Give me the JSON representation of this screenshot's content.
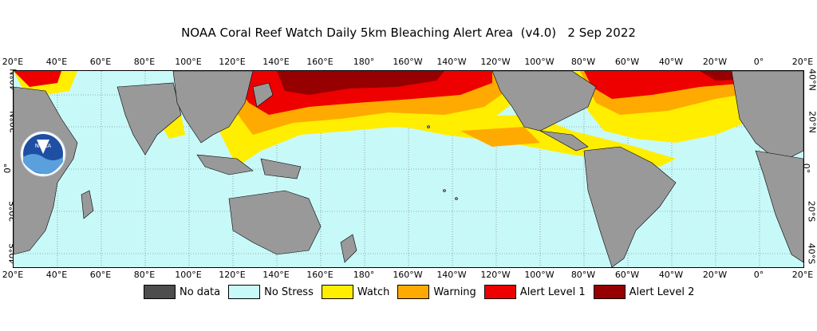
{
  "title": "NOAA Coral Reef Watch Daily 5km Bleaching Alert Area  (v4.0)   2 Sep 2022",
  "logo_text": "NOAA",
  "x_ticks": [
    "20°E",
    "40°E",
    "60°E",
    "80°E",
    "100°E",
    "120°E",
    "140°E",
    "160°E",
    "180°",
    "160°W",
    "140°W",
    "120°W",
    "100°W",
    "80°W",
    "60°W",
    "40°W",
    "20°W",
    "0°",
    "20°E"
  ],
  "y_ticks_left": [
    "40°N",
    "20°N",
    "0°",
    "20°S",
    "40°S"
  ],
  "y_ticks_right": [
    "40°N",
    "20°N",
    "0°",
    "20°S",
    "40°S"
  ],
  "legend": [
    {
      "label": "No data",
      "color": "#4d4d4d"
    },
    {
      "label": "No Stress",
      "color": "#c8f9f9"
    },
    {
      "label": "Watch",
      "color": "#ffee00"
    },
    {
      "label": "Warning",
      "color": "#ffaa00"
    },
    {
      "label": "Alert Level 1",
      "color": "#ee0000"
    },
    {
      "label": "Alert Level 2",
      "color": "#960000"
    }
  ],
  "colors": {
    "land": "#999999",
    "ocean": "#c8f9f9",
    "noaa_blue": "#1f4fa3",
    "noaa_light": "#5aa0dd"
  }
}
